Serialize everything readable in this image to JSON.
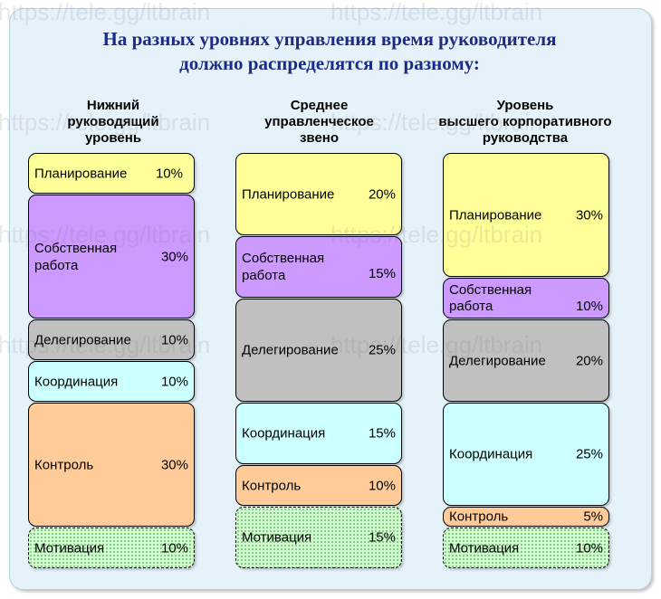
{
  "title": {
    "line1": "На разных уровнях управления время руководителя",
    "line2": "должно распределятся по разному:"
  },
  "watermark": "https://tele.gg/ltbrain",
  "columns": [
    {
      "header": [
        "Нижний",
        "руководящий",
        "уровень"
      ],
      "rows": [
        {
          "label": "Планирование",
          "value": "10%",
          "kind": "plan"
        },
        {
          "label": "Собственная работа",
          "value": "30%",
          "kind": "own"
        },
        {
          "label": "Делегирование",
          "value": "10%",
          "kind": "deleg"
        },
        {
          "label": "Координация",
          "value": "10%",
          "kind": "coord"
        },
        {
          "label": "Контроль",
          "value": "30%",
          "kind": "ctrl"
        },
        {
          "label": "Мотивация",
          "value": "10%",
          "kind": "motiv"
        }
      ]
    },
    {
      "header": [
        "Среднее",
        "управленческое",
        "звено"
      ],
      "rows": [
        {
          "label": "Планирование",
          "value": "20%",
          "kind": "plan"
        },
        {
          "label": "Собственная работа",
          "value": "15%",
          "kind": "own"
        },
        {
          "label": "Делегирование",
          "value": "25%",
          "kind": "deleg"
        },
        {
          "label": "Координация",
          "value": "15%",
          "kind": "coord"
        },
        {
          "label": "Контроль",
          "value": "10%",
          "kind": "ctrl"
        },
        {
          "label": "Мотивация",
          "value": "15%",
          "kind": "motiv"
        }
      ]
    },
    {
      "header": [
        "Уровень",
        "высшего корпоративного",
        "руководства"
      ],
      "rows": [
        {
          "label": "Планирование",
          "value": "30%",
          "kind": "plan"
        },
        {
          "label": "Собственная работа",
          "value": "10%",
          "kind": "own"
        },
        {
          "label": "Делегирование",
          "value": "20%",
          "kind": "deleg"
        },
        {
          "label": "Координация",
          "value": "25%",
          "kind": "coord"
        },
        {
          "label": "Контроль",
          "value": "5%",
          "kind": "ctrl"
        },
        {
          "label": "Мотивация",
          "value": "10%",
          "kind": "motiv"
        }
      ]
    }
  ]
}
